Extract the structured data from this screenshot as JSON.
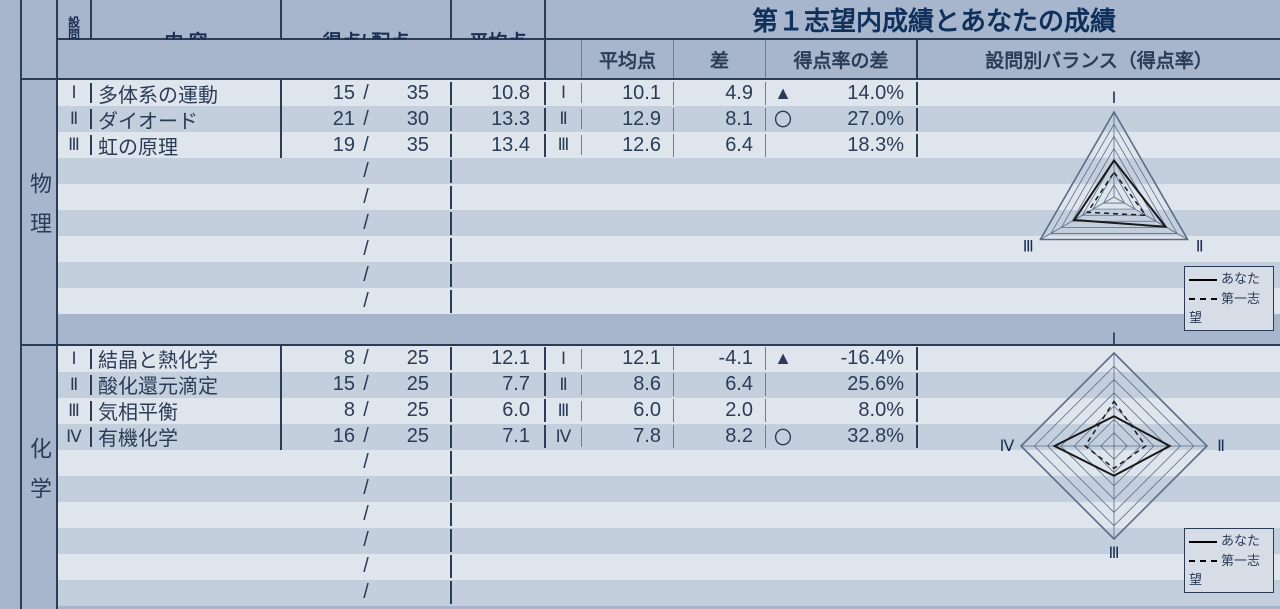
{
  "colors": {
    "page_bg": "#a7b6cc",
    "band_bg": "#c4cfde",
    "light_bg": "#dfe5ec",
    "rule": "#2b3c57",
    "text": "#2b3c57",
    "chart_line_you": "#1a1a1a",
    "chart_line_choice": "#1a1a1a"
  },
  "headers": {
    "qno": "設問番号",
    "content": "内 容",
    "score": "得点/ 配点",
    "avg": "平均点",
    "banner": "第１志望内成績とあなたの成績",
    "ravg": "平均点",
    "diff": "差",
    "pct": "得点率の差",
    "balance": "設問別バランス（得点率）"
  },
  "legend": {
    "you": "あなた",
    "choice": "第一志望"
  },
  "subjects": [
    {
      "name": "物理",
      "rows_total": 9,
      "chart": {
        "type": "radar",
        "axes": 3,
        "rings": 7,
        "labels": [
          "I",
          "II",
          "III"
        ],
        "you": [
          0.43,
          0.7,
          0.54
        ],
        "choice": [
          0.29,
          0.43,
          0.36
        ],
        "you_style": {
          "stroke": "#1a1a1a",
          "width": 2,
          "dash": "none"
        },
        "choice_style": {
          "stroke": "#1a1a1a",
          "width": 1.5,
          "dash": "5,4"
        }
      },
      "questions": [
        {
          "rn": "I",
          "content": "多体系の運動",
          "score": 15,
          "max": 35,
          "avg": "10.8",
          "ravg": "10.1",
          "diff": "4.9",
          "mark": "▲",
          "pct": "14.0%"
        },
        {
          "rn": "II",
          "content": "ダイオード",
          "score": 21,
          "max": 30,
          "avg": "13.3",
          "ravg": "12.9",
          "diff": "8.1",
          "mark": "〇",
          "pct": "27.0%"
        },
        {
          "rn": "III",
          "content": "虹の原理",
          "score": 19,
          "max": 35,
          "avg": "13.4",
          "ravg": "12.6",
          "diff": "6.4",
          "mark": "",
          "pct": "18.3%"
        }
      ]
    },
    {
      "name": "化学",
      "rows_total": 10,
      "chart": {
        "type": "radar",
        "axes": 4,
        "rings": 7,
        "labels": [
          "I",
          "II",
          "III",
          "IV"
        ],
        "you": [
          0.32,
          0.6,
          0.32,
          0.64
        ],
        "choice": [
          0.48,
          0.34,
          0.24,
          0.31
        ],
        "you_style": {
          "stroke": "#1a1a1a",
          "width": 2,
          "dash": "none"
        },
        "choice_style": {
          "stroke": "#1a1a1a",
          "width": 1.5,
          "dash": "5,4"
        }
      },
      "questions": [
        {
          "rn": "I",
          "content": "結晶と熱化学",
          "score": 8,
          "max": 25,
          "avg": "12.1",
          "ravg": "12.1",
          "diff": "-4.1",
          "mark": "▲",
          "pct": "-16.4%"
        },
        {
          "rn": "II",
          "content": "酸化還元滴定",
          "score": 15,
          "max": 25,
          "avg": "7.7",
          "ravg": "8.6",
          "diff": "6.4",
          "mark": "",
          "pct": "25.6%"
        },
        {
          "rn": "III",
          "content": "気相平衡",
          "score": 8,
          "max": 25,
          "avg": "6.0",
          "ravg": "6.0",
          "diff": "2.0",
          "mark": "",
          "pct": "8.0%"
        },
        {
          "rn": "IV",
          "content": "有機化学",
          "score": 16,
          "max": 25,
          "avg": "7.1",
          "ravg": "7.8",
          "diff": "8.2",
          "mark": "〇",
          "pct": "32.8%"
        }
      ]
    }
  ]
}
